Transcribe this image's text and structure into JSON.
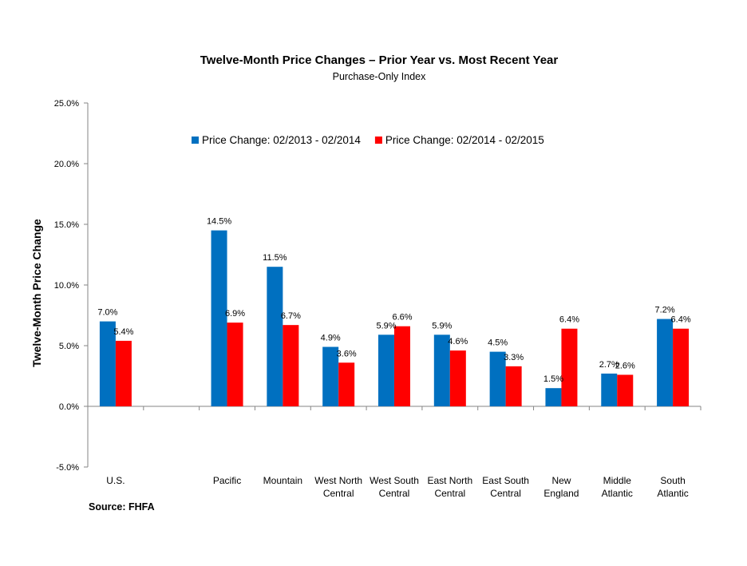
{
  "chart_data": {
    "type": "bar",
    "title": "Twelve-Month Price Changes – Prior Year vs. Most Recent Year",
    "subtitle": "Purchase-Only Index",
    "ylabel": "Twelve-Month Price Change",
    "xlabel": "",
    "ylim": [
      -5,
      25
    ],
    "y_ticks": [
      "-5.0%",
      "0.0%",
      "5.0%",
      "10.0%",
      "15.0%",
      "20.0%",
      "25.0%"
    ],
    "grid": false,
    "legend_position": "top",
    "categories": [
      [
        "U.S."
      ],
      [],
      [
        "Pacific"
      ],
      [
        "Mountain"
      ],
      [
        "West North",
        "Central"
      ],
      [
        "West South",
        "Central"
      ],
      [
        "East North",
        "Central"
      ],
      [
        "East South",
        "Central"
      ],
      [
        "New",
        "England"
      ],
      [
        "Middle",
        "Atlantic"
      ],
      [
        "South",
        "Atlantic"
      ]
    ],
    "series": [
      {
        "name": "Price Change:  02/2013 - 02/2014",
        "color": "#0070C0",
        "values": [
          7.0,
          null,
          14.5,
          11.5,
          4.9,
          5.9,
          5.9,
          4.5,
          1.5,
          2.7,
          7.2
        ],
        "labels": [
          "7.0%",
          null,
          "14.5%",
          "11.5%",
          "4.9%",
          "5.9%",
          "5.9%",
          "4.5%",
          "1.5%",
          "2.7%",
          "7.2%"
        ]
      },
      {
        "name": "Price Change:  02/2014 - 02/2015",
        "color": "#FF0000",
        "values": [
          5.4,
          null,
          6.9,
          6.7,
          3.6,
          6.6,
          4.6,
          3.3,
          6.4,
          2.6,
          6.4
        ],
        "labels": [
          "5.4%",
          null,
          "6.9%",
          "6.7%",
          "3.6%",
          "6.6%",
          "4.6%",
          "3.3%",
          "6.4%",
          "2.6%",
          "6.4%"
        ]
      }
    ]
  },
  "footer": {
    "source": "Source: FHFA"
  }
}
